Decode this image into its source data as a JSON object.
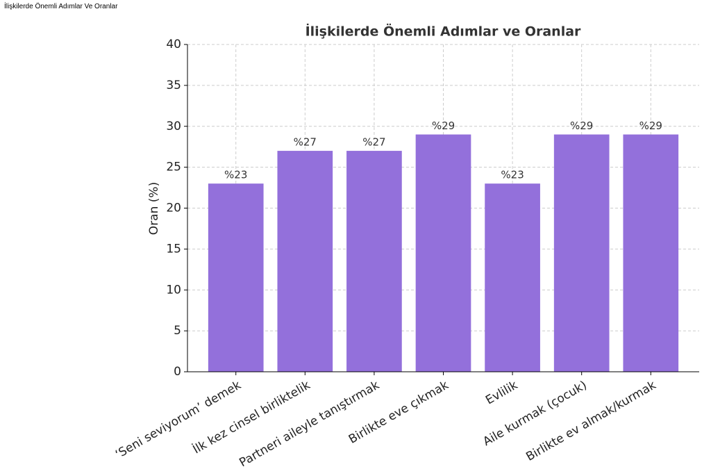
{
  "page_title": "İlişkilerde Önemli Adımlar Ve Oranlar",
  "chart_data": {
    "type": "bar",
    "title": "İlişkilerde Önemli Adımlar ve Oranlar",
    "y_label": "Oran (%)",
    "categories": [
      "‘Seni seviyorum’ demek",
      "İlk kez cinsel birliktelik",
      "Partneri aileyle tanıştırmak",
      "Birlikte eve çıkmak",
      "Evlilik",
      "Aile kurmak (çocuk)",
      "Birlikte ev almak/kurmak"
    ],
    "values": [
      23,
      27,
      27,
      29,
      23,
      29,
      29
    ],
    "value_labels": [
      "%23",
      "%27",
      "%27",
      "%29",
      "%23",
      "%29",
      "%29"
    ],
    "color": "#9370db",
    "ylim": [
      0,
      40
    ],
    "yticks": [
      0,
      5,
      10,
      15,
      20,
      25,
      30,
      35,
      40
    ],
    "grid": true
  }
}
